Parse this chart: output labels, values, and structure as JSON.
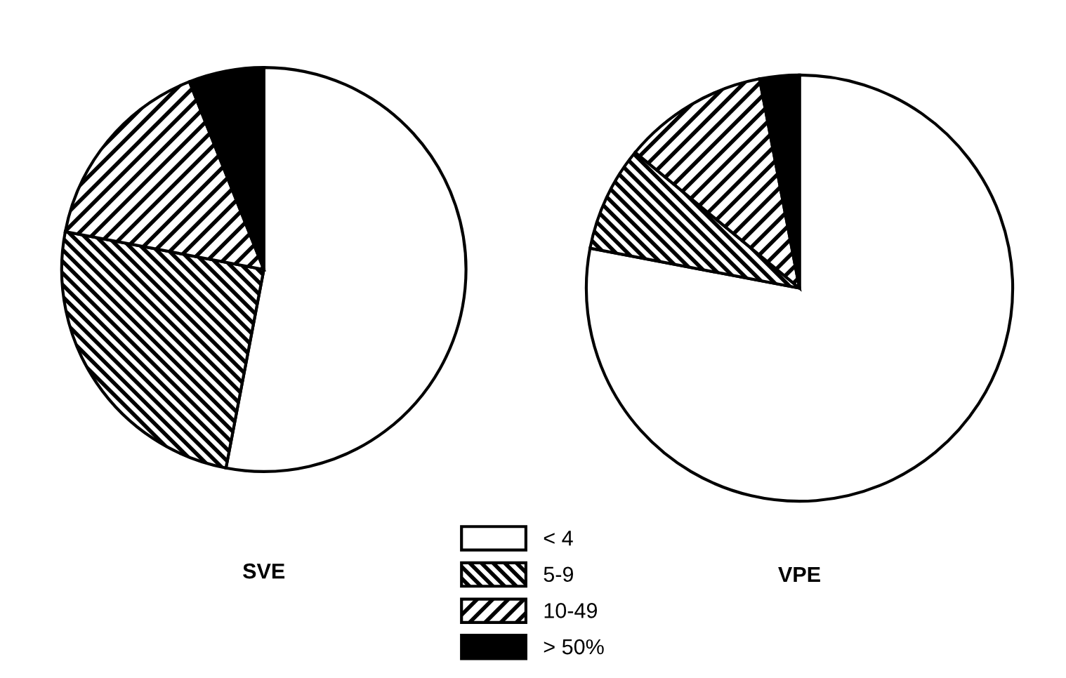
{
  "chart_data": [
    {
      "type": "pie",
      "title": "SVE",
      "categories": [
        "< 4",
        "5-9",
        "10-49",
        "> 50%"
      ],
      "values": [
        53,
        25,
        16,
        6
      ],
      "colors": [
        "#ffffff",
        "#000000",
        "#000000",
        "#000000"
      ],
      "legend": "bottom right"
    },
    {
      "type": "pie",
      "title": "VPE",
      "categories": [
        null,
        null,
        null,
        null
      ],
      "values": [
        78,
        8,
        11,
        3
      ],
      "colors": [
        "#ffffff",
        "#000000",
        "#000000",
        "#000000"
      ]
    }
  ]
}
